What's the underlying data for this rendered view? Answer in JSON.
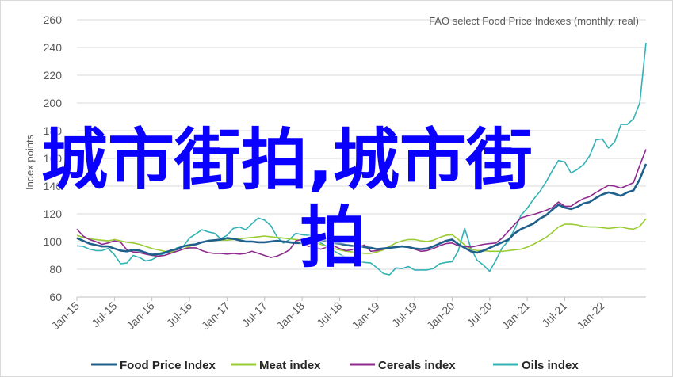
{
  "overlay": {
    "line1": "城市街拍,城市街",
    "line2": "拍"
  },
  "chart_data": {
    "type": "line",
    "title": "",
    "annotation": "FAO select Food Price Indexes (monthly, real)",
    "xlabel": "",
    "ylabel": "Index points",
    "ylim": [
      60,
      260
    ],
    "yticks": [
      60,
      80,
      100,
      120,
      140,
      160,
      180,
      200,
      220,
      240,
      260
    ],
    "xticks": [
      "Jan-15",
      "Jul-15",
      "Jan-16",
      "Jul-16",
      "Jan-17",
      "Jul-17",
      "Jan-18",
      "Jul-18",
      "Jan-19",
      "Jul-19",
      "Jan-20",
      "Jul-20",
      "Jan-21",
      "Jul-21",
      "Jan-22"
    ],
    "x_start": "Jan-15",
    "x_end": "Mar-22",
    "grid": "horizontal",
    "legend_position": "bottom",
    "series": [
      {
        "name": "Food Price Index",
        "color": "#1f5f8b",
        "values": [
          102.5,
          100.5,
          98.5,
          97.5,
          96.5,
          96.5,
          95.0,
          93.5,
          93.0,
          94.0,
          93.5,
          92.0,
          90.5,
          91.0,
          92.0,
          93.5,
          94.5,
          96.5,
          97.5,
          98.0,
          99.5,
          100.5,
          101.0,
          101.5,
          102.5,
          102.0,
          101.0,
          100.0,
          100.0,
          99.5,
          99.5,
          100.0,
          100.5,
          100.0,
          99.5,
          99.0,
          99.0,
          99.5,
          100.5,
          101.0,
          100.5,
          99.0,
          98.5,
          97.5,
          97.0,
          96.5,
          96.0,
          95.5,
          94.5,
          95.0,
          95.5,
          96.0,
          96.5,
          96.0,
          95.0,
          94.5,
          95.0,
          96.5,
          98.5,
          100.5,
          101.5,
          98.0,
          95.5,
          93.0,
          92.0,
          93.5,
          95.5,
          97.5,
          99.5,
          101.5,
          106.0,
          109.0,
          111.0,
          113.0,
          116.5,
          119.0,
          123.0,
          126.5,
          124.5,
          123.5,
          125.0,
          127.5,
          128.5,
          131.5,
          134.0,
          135.5,
          134.5,
          133.0,
          135.5,
          137.0,
          145.0,
          156.0
        ]
      },
      {
        "name": "Meat index",
        "color": "#99cc33",
        "values": [
          104.5,
          103.0,
          102.0,
          101.5,
          101.0,
          100.5,
          101.5,
          100.5,
          99.5,
          99.0,
          98.0,
          96.5,
          95.0,
          94.0,
          93.0,
          92.5,
          93.0,
          94.5,
          96.5,
          98.0,
          99.5,
          100.5,
          101.0,
          101.0,
          101.0,
          101.5,
          102.0,
          102.5,
          103.0,
          103.5,
          104.0,
          103.5,
          103.0,
          102.5,
          102.0,
          101.5,
          101.0,
          100.5,
          99.5,
          98.0,
          96.5,
          95.0,
          94.0,
          93.0,
          92.5,
          92.0,
          91.5,
          91.5,
          92.5,
          94.0,
          96.5,
          99.0,
          100.5,
          101.5,
          101.5,
          100.5,
          100.0,
          101.0,
          103.0,
          104.5,
          105.0,
          101.5,
          97.5,
          94.5,
          93.5,
          93.5,
          93.0,
          93.0,
          93.0,
          93.5,
          94.0,
          94.5,
          96.0,
          98.0,
          100.5,
          103.0,
          106.5,
          110.5,
          112.5,
          112.5,
          112.0,
          111.0,
          110.5,
          110.5,
          110.0,
          109.5,
          110.0,
          110.5,
          109.5,
          109.0,
          111.0,
          116.5
        ]
      },
      {
        "name": "Cereals index",
        "color": "#8e2a8e",
        "values": [
          109.0,
          104.0,
          101.5,
          100.0,
          98.0,
          99.0,
          100.5,
          99.5,
          94.0,
          92.5,
          92.0,
          91.0,
          90.0,
          89.5,
          90.0,
          91.5,
          93.0,
          94.5,
          95.5,
          95.5,
          93.5,
          92.0,
          91.5,
          91.5,
          91.0,
          91.5,
          91.0,
          91.5,
          93.0,
          91.5,
          90.0,
          88.5,
          89.5,
          91.5,
          94.0,
          100.5,
          101.5,
          96.5,
          96.0,
          94.5,
          96.0,
          97.0,
          95.0,
          93.5,
          94.0,
          96.5,
          97.5,
          93.0,
          93.5,
          94.5,
          95.5,
          96.0,
          96.5,
          96.0,
          94.5,
          93.0,
          93.5,
          95.0,
          97.0,
          98.5,
          99.0,
          97.0,
          96.5,
          96.0,
          97.0,
          98.0,
          98.5,
          99.0,
          102.5,
          107.5,
          112.5,
          117.0,
          118.5,
          119.5,
          121.0,
          122.5,
          124.5,
          128.5,
          125.5,
          125.5,
          128.5,
          131.0,
          132.5,
          135.5,
          138.0,
          140.5,
          140.0,
          138.5,
          140.5,
          142.5,
          155.0,
          166.5
        ]
      },
      {
        "name": "Oils index",
        "color": "#33b2b6",
        "values": [
          97.0,
          96.5,
          94.5,
          93.5,
          93.5,
          95.0,
          90.5,
          84.0,
          84.5,
          90.0,
          88.5,
          86.0,
          87.0,
          89.5,
          91.5,
          92.5,
          95.5,
          96.5,
          102.5,
          105.5,
          108.5,
          107.0,
          106.0,
          102.0,
          104.5,
          109.5,
          110.5,
          108.5,
          113.0,
          117.0,
          115.5,
          111.5,
          103.5,
          99.0,
          101.5,
          106.0,
          105.0,
          104.5,
          104.5,
          99.0,
          96.5,
          93.5,
          91.0,
          88.5,
          86.5,
          85.5,
          85.0,
          84.5,
          81.0,
          77.0,
          76.0,
          81.0,
          80.5,
          82.0,
          79.5,
          79.5,
          79.5,
          80.5,
          84.0,
          85.0,
          85.5,
          93.5,
          109.5,
          95.0,
          86.5,
          83.0,
          78.5,
          86.5,
          95.5,
          100.5,
          109.0,
          119.0,
          124.0,
          130.5,
          136.0,
          143.0,
          151.0,
          158.5,
          157.5,
          149.5,
          152.0,
          155.5,
          162.0,
          173.5,
          174.0,
          167.5,
          172.0,
          184.5,
          184.5,
          188.5,
          200.0,
          243.5
        ]
      }
    ]
  }
}
